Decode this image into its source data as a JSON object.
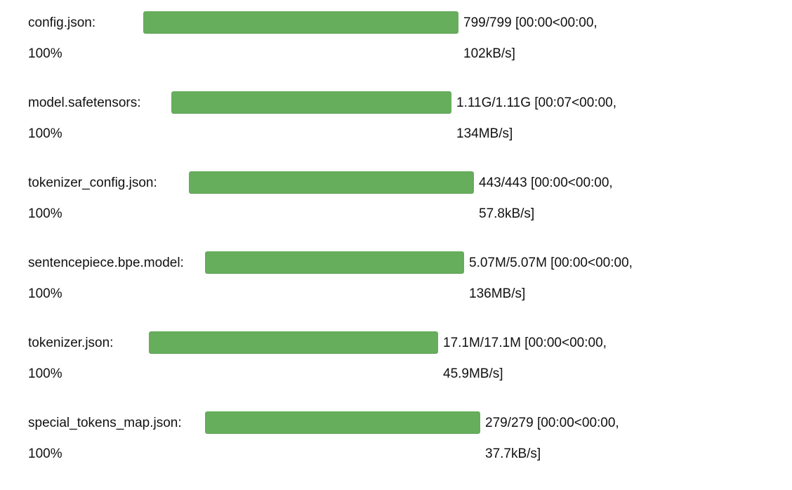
{
  "downloads": [
    {
      "filename": "config.json:",
      "percent_label": "100%",
      "progress": 1.0,
      "stats_line1": "799/799 [00:00<00:00,",
      "stats_line2": "102kB/s]"
    },
    {
      "filename": "model.safetensors:",
      "percent_label": "100%",
      "progress": 1.0,
      "stats_line1": "1.11G/1.11G [00:07<00:00,",
      "stats_line2": "134MB/s]"
    },
    {
      "filename": "tokenizer_config.json:",
      "percent_label": "100%",
      "progress": 1.0,
      "stats_line1": "443/443 [00:00<00:00,",
      "stats_line2": "57.8kB/s]"
    },
    {
      "filename": "sentencepiece.bpe.model:",
      "percent_label": "100%",
      "progress": 1.0,
      "stats_line1": "5.07M/5.07M [00:00<00:00,",
      "stats_line2": "136MB/s]"
    },
    {
      "filename": "tokenizer.json:",
      "percent_label": "100%",
      "progress": 1.0,
      "stats_line1": "17.1M/17.1M [00:00<00:00,",
      "stats_line2": "45.9MB/s]"
    },
    {
      "filename": "special_tokens_map.json:",
      "percent_label": "100%",
      "progress": 1.0,
      "stats_line1": "279/279 [00:00<00:00,",
      "stats_line2": "37.7kB/s]"
    }
  ],
  "colors": {
    "bar_fill": "#66ad5c",
    "bar_track": "#e6e6e6",
    "text": "#111111"
  }
}
